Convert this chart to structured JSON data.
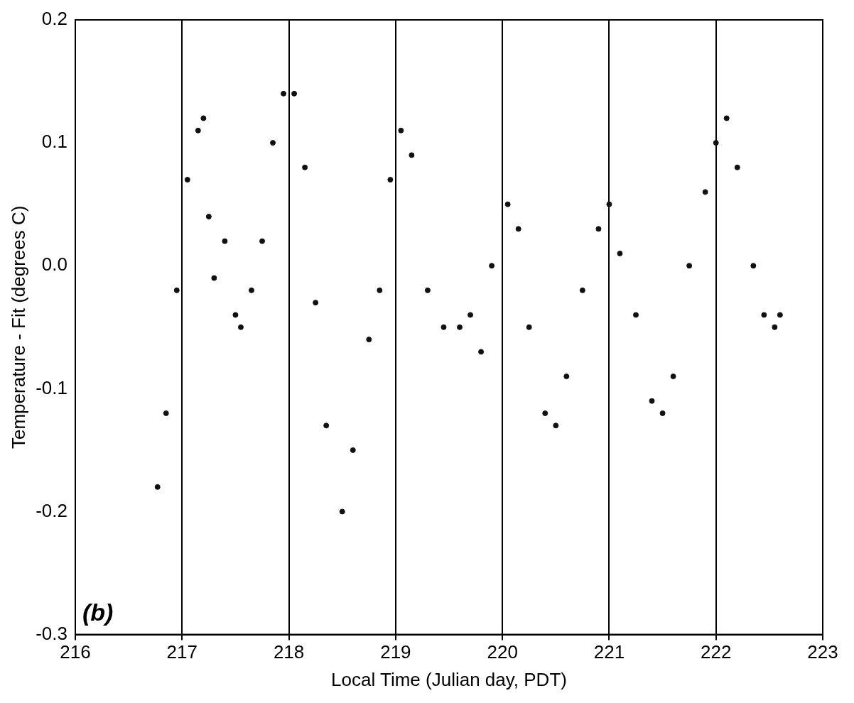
{
  "chart_data": {
    "type": "scatter",
    "xlabel": "Local Time (Julian day, PDT)",
    "ylabel": "Temperature - Fit (degrees C)",
    "annotations": [
      "(b)"
    ],
    "xlim": [
      216,
      223
    ],
    "xticks": [
      216,
      217,
      218,
      219,
      220,
      221,
      222,
      223
    ],
    "ylim": [
      -0.3,
      0.2
    ],
    "yticks": [
      {
        "value": -0.3,
        "label": "-0.3"
      },
      {
        "value": -0.2,
        "label": "-0.2"
      },
      {
        "value": -0.1,
        "label": "-0.1"
      },
      {
        "value": 0,
        "label": "0.0"
      },
      {
        "value": 0.1,
        "label": "0.1"
      },
      {
        "value": 0.2,
        "label": "0.2"
      }
    ],
    "grid": "x",
    "marker": "circle",
    "legend": false,
    "series": [
      {
        "color": "#111111",
        "x": [
          216.77,
          216.85,
          216.95,
          217.05,
          217.15,
          217.2,
          217.25,
          217.3,
          217.4,
          217.5,
          217.55,
          217.65,
          217.75,
          217.85,
          217.95,
          218.05,
          218.15,
          218.25,
          218.35,
          218.5,
          218.6,
          218.75,
          218.85,
          218.95,
          219.05,
          219.15,
          219.3,
          219.45,
          219.6,
          219.7,
          219.8,
          219.9,
          220.05,
          220.15,
          220.25,
          220.4,
          220.5,
          220.6,
          220.75,
          220.9,
          221.0,
          221.1,
          221.25,
          221.4,
          221.5,
          221.6,
          221.75,
          221.9,
          222.0,
          222.1,
          222.2,
          222.35,
          222.45,
          222.55,
          222.6
        ],
        "values": [
          -0.18,
          -0.12,
          -0.02,
          0.07,
          0.11,
          0.12,
          0.04,
          -0.01,
          0.02,
          -0.04,
          -0.05,
          -0.02,
          0.02,
          0.1,
          0.14,
          0.14,
          0.08,
          -0.03,
          -0.13,
          -0.2,
          -0.15,
          -0.06,
          -0.02,
          0.07,
          0.11,
          0.09,
          -0.02,
          -0.05,
          -0.05,
          -0.04,
          -0.07,
          0.0,
          0.05,
          0.03,
          -0.05,
          -0.12,
          -0.13,
          -0.09,
          -0.02,
          0.03,
          0.05,
          0.01,
          -0.04,
          -0.11,
          -0.12,
          -0.09,
          0.0,
          0.06,
          0.1,
          0.12,
          0.08,
          0.0,
          -0.04,
          -0.05,
          -0.04
        ]
      }
    ]
  }
}
